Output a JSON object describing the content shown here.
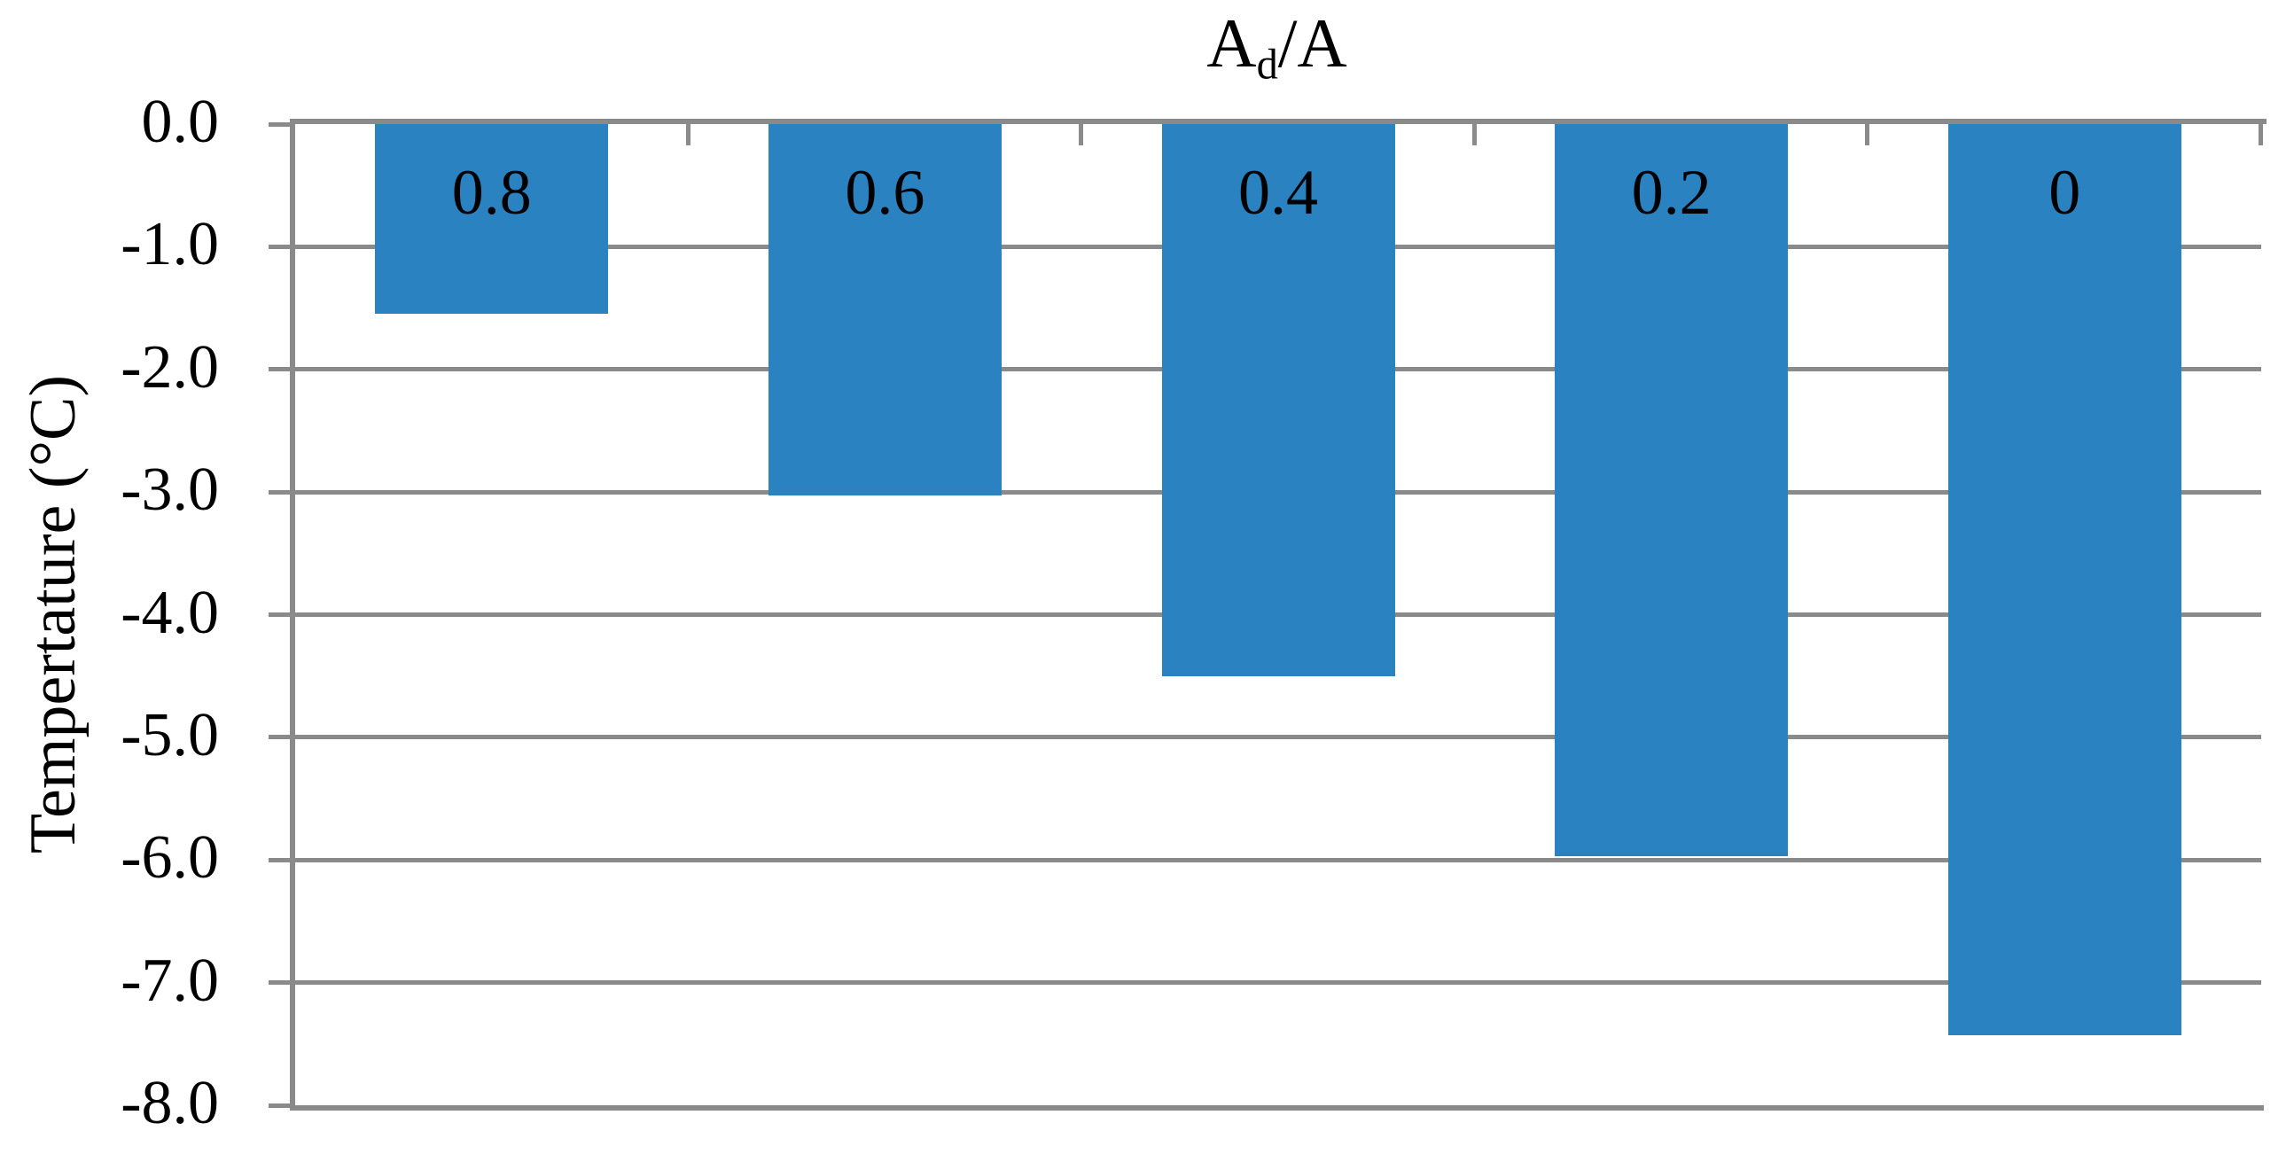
{
  "title": {
    "base": "A",
    "sub": "d",
    "rest": "/A"
  },
  "y_axis": {
    "label": "Tempertature (°C)",
    "ticks": [
      "0.0",
      "-1.0",
      "-2.0",
      "-3.0",
      "-4.0",
      "-5.0",
      "-6.0",
      "-7.0",
      "-8.0"
    ]
  },
  "chart_data": {
    "type": "bar",
    "title": "Ad/A",
    "categories": [
      "0.8",
      "0.6",
      "0.4",
      "0.2",
      "0"
    ],
    "values": [
      -1.55,
      -3.03,
      -4.5,
      -5.97,
      -7.43
    ],
    "bar_labels_shown_inside_bars": [
      "0.8",
      "0.6",
      "0.4",
      "0.2",
      "0"
    ],
    "xlabel": "",
    "ylabel": "Tempertature (°C)",
    "ylim": [
      -8,
      0
    ],
    "ytick_step": 1.0,
    "grid": "horizontal gridlines every 1.0",
    "legend": "none",
    "bar_label_position": "inside-top",
    "colors": {
      "bar": "#2A82C1",
      "axis": "#8A8A8A",
      "gridline": "#8A8A8A",
      "text": "#000000",
      "background": "#FFFFFF"
    }
  }
}
